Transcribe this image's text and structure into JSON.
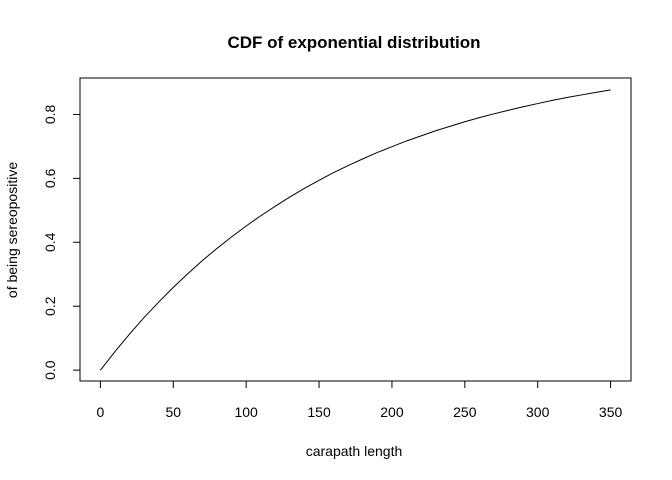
{
  "chart_data": {
    "type": "line",
    "title": "CDF of exponential distribution",
    "xlabel": "carapath length",
    "ylabel_lines": [
      "",
      "of being sereopositive"
    ],
    "xlim": [
      -14,
      364
    ],
    "ylim": [
      -0.034,
      0.914
    ],
    "x_ticks": [
      0,
      50,
      100,
      150,
      200,
      250,
      300,
      350
    ],
    "y_ticks": [
      0.0,
      0.2,
      0.4,
      0.6,
      0.8
    ],
    "x_tick_labels": [
      "0",
      "50",
      "100",
      "150",
      "200",
      "250",
      "300",
      "350"
    ],
    "y_tick_labels": [
      "0.0",
      "0.2",
      "0.4",
      "0.6",
      "0.8"
    ],
    "series": [
      {
        "color": "#000000",
        "x": [
          0,
          10,
          20,
          30,
          40,
          50,
          60,
          70,
          80,
          90,
          100,
          110,
          120,
          130,
          140,
          150,
          160,
          170,
          180,
          190,
          200,
          210,
          220,
          230,
          240,
          250,
          260,
          270,
          280,
          290,
          300,
          310,
          320,
          330,
          340,
          350
        ],
        "y": [
          0.0,
          0.058,
          0.113,
          0.165,
          0.213,
          0.259,
          0.302,
          0.343,
          0.381,
          0.417,
          0.451,
          0.483,
          0.513,
          0.542,
          0.569,
          0.594,
          0.618,
          0.64,
          0.661,
          0.681,
          0.699,
          0.717,
          0.733,
          0.749,
          0.763,
          0.777,
          0.79,
          0.802,
          0.813,
          0.824,
          0.834,
          0.844,
          0.853,
          0.861,
          0.869,
          0.877
        ]
      }
    ]
  }
}
